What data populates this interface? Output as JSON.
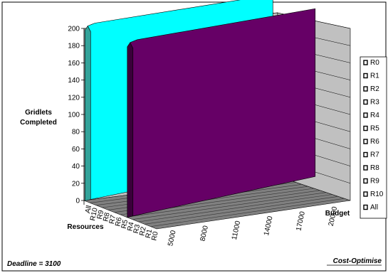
{
  "chart_data": {
    "type": "bar",
    "variant": "3d-surface",
    "title": "",
    "ylabel": "Gridlets Completed",
    "ylabel_lines": [
      "Gridlets",
      "Completed"
    ],
    "xlabel": "Resources",
    "zlabel": "Budget",
    "ylim": [
      0,
      200
    ],
    "yticks": [
      0,
      20,
      40,
      60,
      80,
      100,
      120,
      140,
      160,
      180,
      200
    ],
    "resources": [
      "All",
      "R10",
      "R9",
      "R8",
      "R7",
      "R6",
      "R5",
      "R4",
      "R3",
      "R2",
      "R1",
      "R0"
    ],
    "budgets": [
      5000,
      8000,
      11000,
      14000,
      17000,
      20000
    ],
    "budget_tick_labels": [
      "5000",
      "8000",
      "11000",
      "14000",
      "17000",
      "20000"
    ],
    "series": [
      {
        "name": "All",
        "values": [
          200,
          200,
          200,
          200,
          200,
          200
        ]
      },
      {
        "name": "R4",
        "values": [
          200,
          200,
          200,
          200,
          200,
          200
        ]
      },
      {
        "name": "R10",
        "values": [
          0,
          0,
          0,
          0,
          0,
          0
        ]
      },
      {
        "name": "R9",
        "values": [
          0,
          0,
          0,
          0,
          0,
          0
        ]
      },
      {
        "name": "R8",
        "values": [
          0,
          0,
          0,
          0,
          0,
          0
        ]
      },
      {
        "name": "R7",
        "values": [
          0,
          0,
          0,
          0,
          0,
          0
        ]
      },
      {
        "name": "R6",
        "values": [
          0,
          0,
          0,
          0,
          0,
          0
        ]
      },
      {
        "name": "R5",
        "values": [
          0,
          0,
          0,
          0,
          0,
          0
        ]
      },
      {
        "name": "R3",
        "values": [
          0,
          0,
          0,
          0,
          0,
          0
        ]
      },
      {
        "name": "R2",
        "values": [
          0,
          0,
          0,
          0,
          0,
          0
        ]
      },
      {
        "name": "R1",
        "values": [
          0,
          0,
          0,
          0,
          0,
          0
        ]
      },
      {
        "name": "R0",
        "values": [
          0,
          0,
          0,
          0,
          0,
          0
        ]
      }
    ],
    "legend": [
      "R0",
      "R1",
      "R2",
      "R3",
      "R4",
      "R5",
      "R6",
      "R7",
      "R8",
      "R9",
      "R10",
      "All"
    ],
    "legend_position": "right",
    "grid": true,
    "colors": {
      "All": "#00ffff",
      "All_side": "#33a39a",
      "R4": "#660066",
      "R4_side": "#3a003a",
      "wall": "#c0c0c0",
      "floor": "#808080"
    }
  },
  "annotations": {
    "deadline": "Deadline = 3100",
    "strategy": "Cost-Optimise"
  }
}
